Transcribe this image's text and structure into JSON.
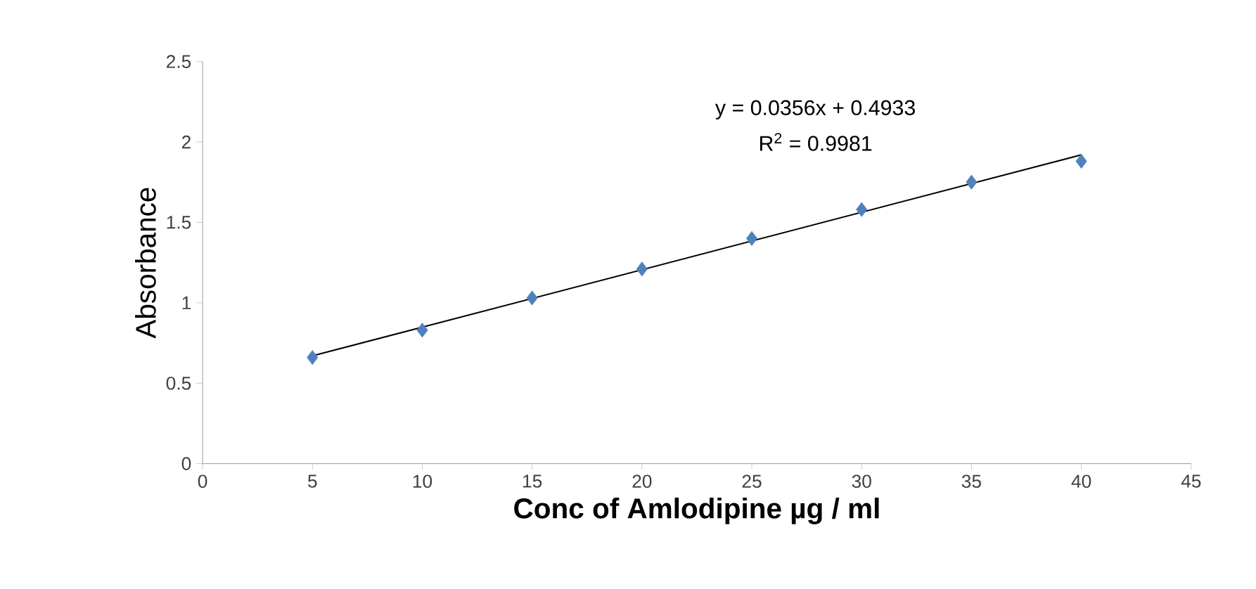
{
  "chart_data": {
    "type": "scatter",
    "xlabel": "Conc of Amlodipine  µg / ml",
    "ylabel": "Absorbance",
    "xlim": [
      0,
      45
    ],
    "xticks": [
      0,
      5,
      10,
      15,
      20,
      25,
      30,
      35,
      40,
      45
    ],
    "ylim": [
      0,
      2.5
    ],
    "yticks": [
      0,
      0.5,
      1,
      1.5,
      2,
      2.5
    ],
    "grid": false,
    "marker": "diamond",
    "annotations": [
      "y = 0.0356x + 0.4933",
      "R$^{2}$ = 0.9981"
    ],
    "series": [
      {
        "color": "#4f81bd",
        "x": [
          5,
          10,
          15,
          20,
          25,
          30,
          35,
          40
        ],
        "values": [
          0.66,
          0.83,
          1.03,
          1.21,
          1.4,
          1.58,
          1.75,
          1.88
        ]
      },
      {
        "type": "line",
        "color": "#000000",
        "marker": "none",
        "x": [
          5,
          40
        ],
        "values": [
          0.67,
          1.92
        ]
      }
    ]
  }
}
